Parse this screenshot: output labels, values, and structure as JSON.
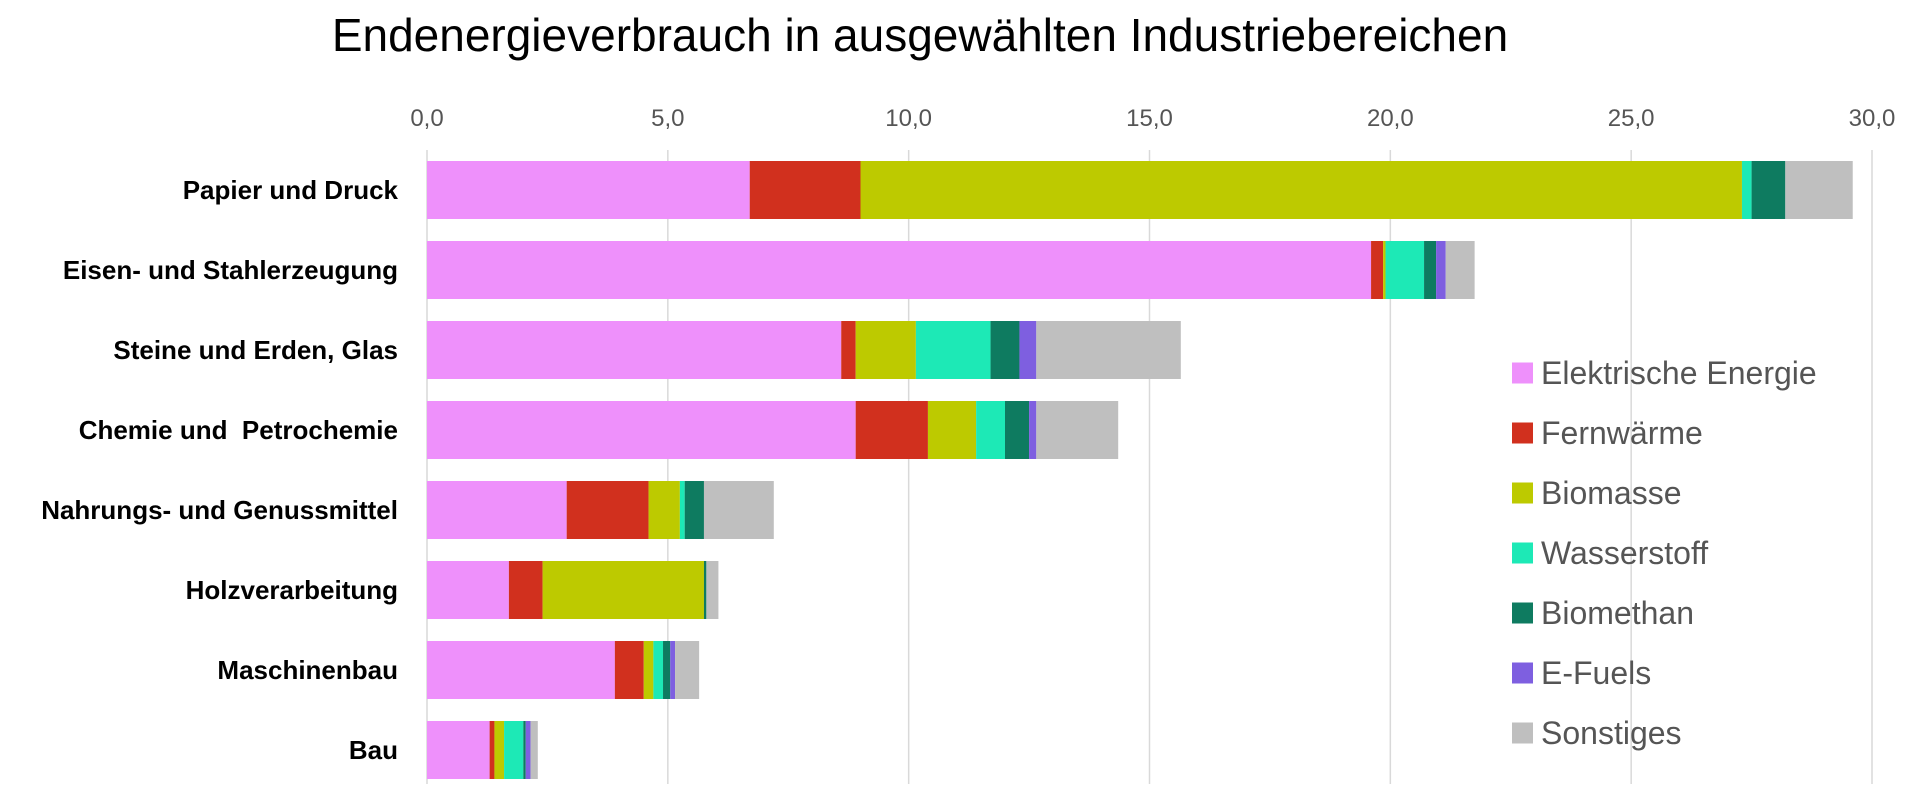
{
  "chart_data": {
    "type": "bar",
    "orientation": "horizontal",
    "stacked": true,
    "title": "Endenergieverbrauch in ausgewählten Industriebereichen",
    "xlabel": "",
    "ylabel": "",
    "xlim": [
      0,
      30
    ],
    "x_ticks": [
      "0,0",
      "5,0",
      "10,0",
      "15,0",
      "20,0",
      "25,0",
      "30,0"
    ],
    "x_axis_position": "top",
    "grid": true,
    "legend_position": "right",
    "categories": [
      "Papier und Druck",
      "Eisen- und Stahlerzeugung",
      "Steine und Erden, Glas",
      "Chemie und  Petrochemie",
      "Nahrungs- und Genussmittel",
      "Holzverarbeitung",
      "Maschinenbau",
      "Bau"
    ],
    "series": [
      {
        "name": "Elektrische Energie",
        "color": "#EE90FB",
        "values": [
          6.7,
          19.6,
          8.6,
          8.9,
          2.9,
          1.7,
          3.9,
          1.3
        ]
      },
      {
        "name": "Fernwärme",
        "color": "#D1301E",
        "values": [
          2.3,
          0.25,
          0.3,
          1.5,
          1.7,
          0.7,
          0.6,
          0.1
        ]
      },
      {
        "name": "Biomasse",
        "color": "#BDCA00",
        "values": [
          18.3,
          0.05,
          1.25,
          1.0,
          0.65,
          3.35,
          0.2,
          0.2
        ]
      },
      {
        "name": "Wasserstoff",
        "color": "#1DE9B6",
        "values": [
          0.2,
          0.8,
          1.55,
          0.6,
          0.1,
          0.0,
          0.2,
          0.4
        ]
      },
      {
        "name": "Biomethan",
        "color": "#0E7B60",
        "values": [
          0.7,
          0.25,
          0.6,
          0.5,
          0.4,
          0.05,
          0.15,
          0.05
        ]
      },
      {
        "name": "E-Fuels",
        "color": "#7E5FE0",
        "values": [
          0.0,
          0.2,
          0.35,
          0.15,
          0.0,
          0.0,
          0.1,
          0.1
        ]
      },
      {
        "name": "Sonstiges",
        "color": "#BFBFBF",
        "values": [
          1.4,
          0.6,
          3.0,
          1.7,
          1.45,
          0.25,
          0.5,
          0.15
        ]
      }
    ]
  }
}
